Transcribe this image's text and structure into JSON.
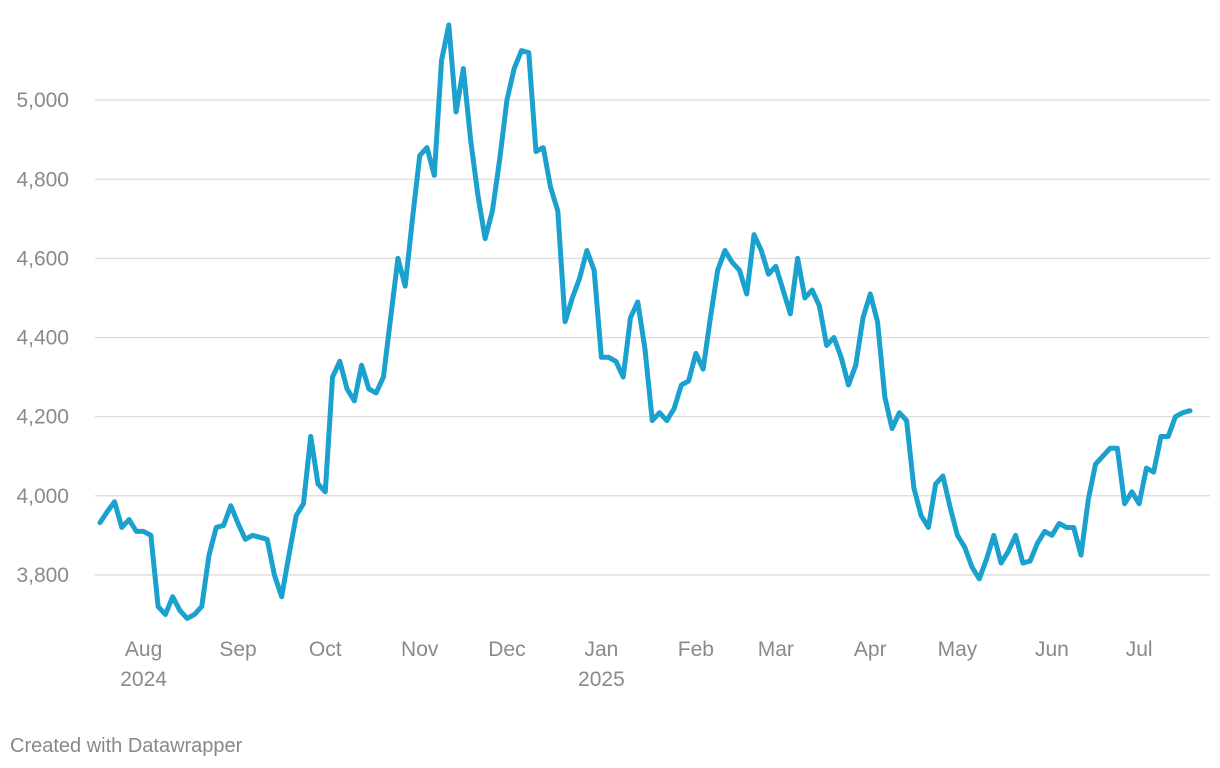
{
  "chart_data": {
    "type": "line",
    "categories": [
      null,
      null,
      null,
      null,
      null,
      null,
      "Aug",
      null,
      null,
      null,
      null,
      null,
      null,
      null,
      null,
      null,
      null,
      null,
      null,
      "Sep",
      null,
      null,
      null,
      null,
      null,
      null,
      null,
      null,
      null,
      null,
      null,
      "Oct",
      null,
      null,
      null,
      null,
      null,
      null,
      null,
      null,
      null,
      null,
      null,
      null,
      "Nov",
      null,
      null,
      null,
      null,
      null,
      null,
      null,
      null,
      null,
      null,
      null,
      "Dec",
      null,
      null,
      null,
      null,
      null,
      null,
      null,
      null,
      null,
      null,
      null,
      null,
      "Jan",
      null,
      null,
      null,
      null,
      null,
      null,
      null,
      null,
      null,
      null,
      null,
      null,
      "Feb",
      null,
      null,
      null,
      null,
      null,
      null,
      null,
      null,
      null,
      null,
      "Mar",
      null,
      null,
      null,
      null,
      null,
      null,
      null,
      null,
      null,
      null,
      null,
      null,
      "Apr",
      null,
      null,
      null,
      null,
      null,
      null,
      null,
      null,
      null,
      null,
      null,
      "May",
      null,
      null,
      null,
      null,
      null,
      null,
      null,
      null,
      null,
      null,
      null,
      null,
      "Jun",
      null,
      null,
      null,
      null,
      null,
      null,
      null,
      null,
      null,
      null,
      null,
      "Jul",
      null,
      null,
      null,
      null,
      null,
      null,
      null
    ],
    "year_labels": [
      null,
      null,
      null,
      null,
      null,
      null,
      "2024",
      null,
      null,
      null,
      null,
      null,
      null,
      null,
      null,
      null,
      null,
      null,
      null,
      null,
      null,
      null,
      null,
      null,
      null,
      null,
      null,
      null,
      null,
      null,
      null,
      null,
      null,
      null,
      null,
      null,
      null,
      null,
      null,
      null,
      null,
      null,
      null,
      null,
      null,
      null,
      null,
      null,
      null,
      null,
      null,
      null,
      null,
      null,
      null,
      null,
      null,
      null,
      null,
      null,
      null,
      null,
      null,
      null,
      null,
      null,
      null,
      null,
      null,
      "2025",
      null,
      null,
      null,
      null,
      null,
      null,
      null,
      null,
      null,
      null,
      null,
      null,
      null,
      null,
      null,
      null,
      null,
      null,
      null,
      null,
      null,
      null,
      null,
      null,
      null,
      null,
      null,
      null,
      null,
      null,
      null,
      null,
      null,
      null,
      null,
      null,
      null,
      null,
      null,
      null,
      null,
      null,
      null,
      null,
      null,
      null,
      null,
      null,
      null,
      null,
      null,
      null,
      null,
      null,
      null,
      null,
      null,
      null,
      null,
      null,
      null,
      null,
      null,
      null,
      null,
      null,
      null,
      null,
      null,
      null,
      null,
      null,
      null,
      null,
      null,
      null,
      null,
      null,
      null,
      null,
      null,
      null,
      null
    ],
    "values": [
      3932,
      3960,
      3985,
      3920,
      3940,
      3910,
      3910,
      3900,
      3720,
      3700,
      3745,
      3710,
      3690,
      3700,
      3720,
      3850,
      3920,
      3925,
      3975,
      3930,
      3890,
      3900,
      3895,
      3890,
      3800,
      3745,
      3850,
      3950,
      3980,
      4150,
      4030,
      4010,
      4300,
      4340,
      4270,
      4240,
      4330,
      4270,
      4260,
      4300,
      4450,
      4600,
      4530,
      4700,
      4860,
      4880,
      4810,
      5100,
      5190,
      4970,
      5080,
      4900,
      4760,
      4650,
      4720,
      4850,
      5000,
      5080,
      5125,
      5120,
      4870,
      4880,
      4780,
      4720,
      4440,
      4500,
      4550,
      4620,
      4570,
      4350,
      4350,
      4340,
      4300,
      4450,
      4490,
      4370,
      4190,
      4210,
      4190,
      4220,
      4280,
      4290,
      4360,
      4320,
      4450,
      4570,
      4620,
      4590,
      4570,
      4510,
      4660,
      4620,
      4560,
      4580,
      4520,
      4460,
      4600,
      4500,
      4520,
      4480,
      4380,
      4400,
      4350,
      4280,
      4330,
      4450,
      4510,
      4440,
      4250,
      4170,
      4210,
      4190,
      4020,
      3950,
      3920,
      4030,
      4050,
      3970,
      3900,
      3870,
      3820,
      3790,
      3840,
      3900,
      3830,
      3860,
      3900,
      3830,
      3835,
      3880,
      3910,
      3900,
      3930,
      3920,
      3920,
      3850,
      3990,
      4080,
      4100,
      4120,
      4120,
      3980,
      4010,
      3980,
      4070,
      4060,
      4150,
      4150,
      4200,
      4210,
      4215
    ],
    "color": "#1ba1cd",
    "ylim": [
      3680,
      5200
    ],
    "yticks": [
      3800,
      4000,
      4200,
      4400,
      4600,
      4800,
      5000
    ],
    "ytick_labels": [
      "3,800",
      "4,000",
      "4,200",
      "4,400",
      "4,600",
      "4,800",
      "5,000"
    ],
    "grid": true
  },
  "credit": "Created with Datawrapper"
}
